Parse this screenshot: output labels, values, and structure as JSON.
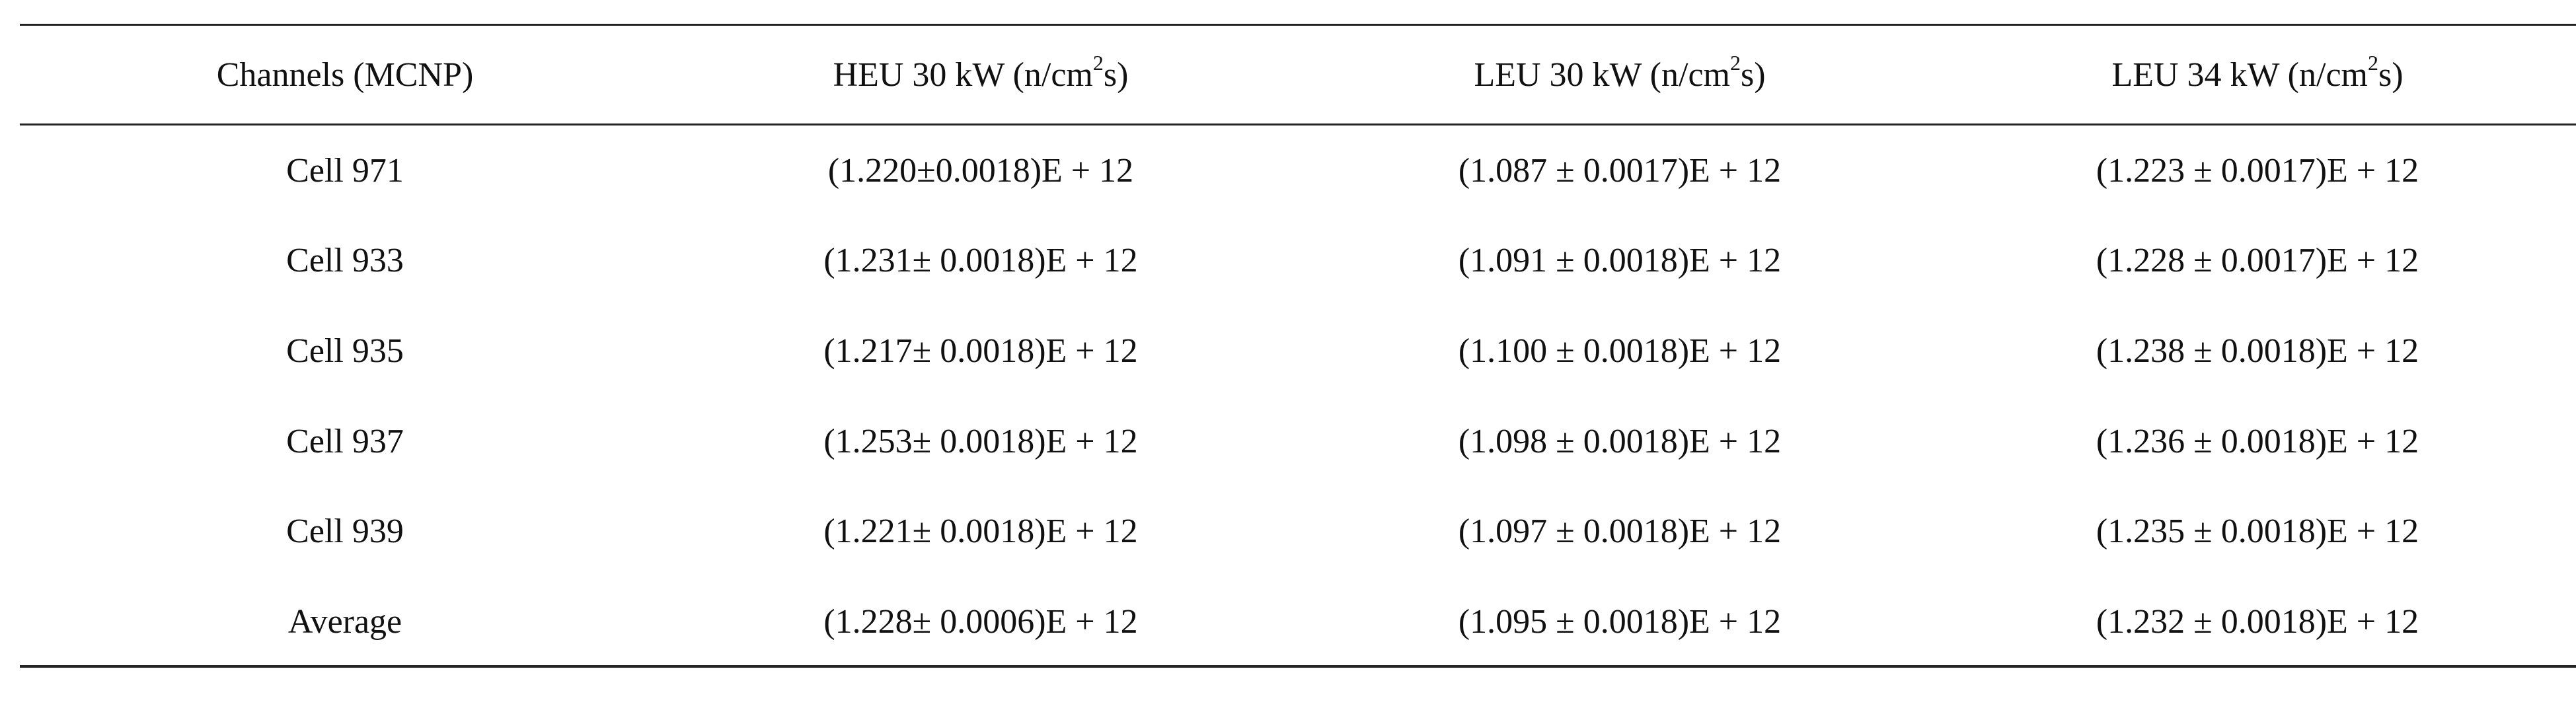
{
  "table": {
    "header": [
      {
        "text": "Channels (MCNP)"
      },
      {
        "text": "HEU 30 kW (n/cm",
        "sup": "2",
        "after": "s)"
      },
      {
        "text": "LEU 30 kW (n/cm",
        "sup": "2",
        "after": "s)"
      },
      {
        "text": "LEU 34 kW (n/cm",
        "sup": "2",
        "after": "s)"
      }
    ],
    "rows": [
      [
        "Cell 971",
        "(1.220±0.0018)E + 12",
        "(1.087 ± 0.0017)E + 12",
        "(1.223 ± 0.0017)E + 12"
      ],
      [
        "Cell 933",
        "(1.231± 0.0018)E + 12",
        "(1.091 ± 0.0018)E + 12",
        "(1.228 ± 0.0017)E + 12"
      ],
      [
        "Cell 935",
        "(1.217± 0.0018)E + 12",
        "(1.100 ± 0.0018)E + 12",
        "(1.238 ± 0.0018)E + 12"
      ],
      [
        "Cell 937",
        "(1.253± 0.0018)E + 12",
        "(1.098 ± 0.0018)E + 12",
        "(1.236 ± 0.0018)E + 12"
      ],
      [
        "Cell 939",
        "(1.221± 0.0018)E + 12",
        "(1.097 ± 0.0018)E + 12",
        "(1.235 ± 0.0018)E + 12"
      ],
      [
        "Average",
        "(1.228± 0.0006)E + 12",
        "(1.095 ± 0.0018)E + 12",
        "(1.232 ± 0.0018)E + 12"
      ]
    ]
  }
}
